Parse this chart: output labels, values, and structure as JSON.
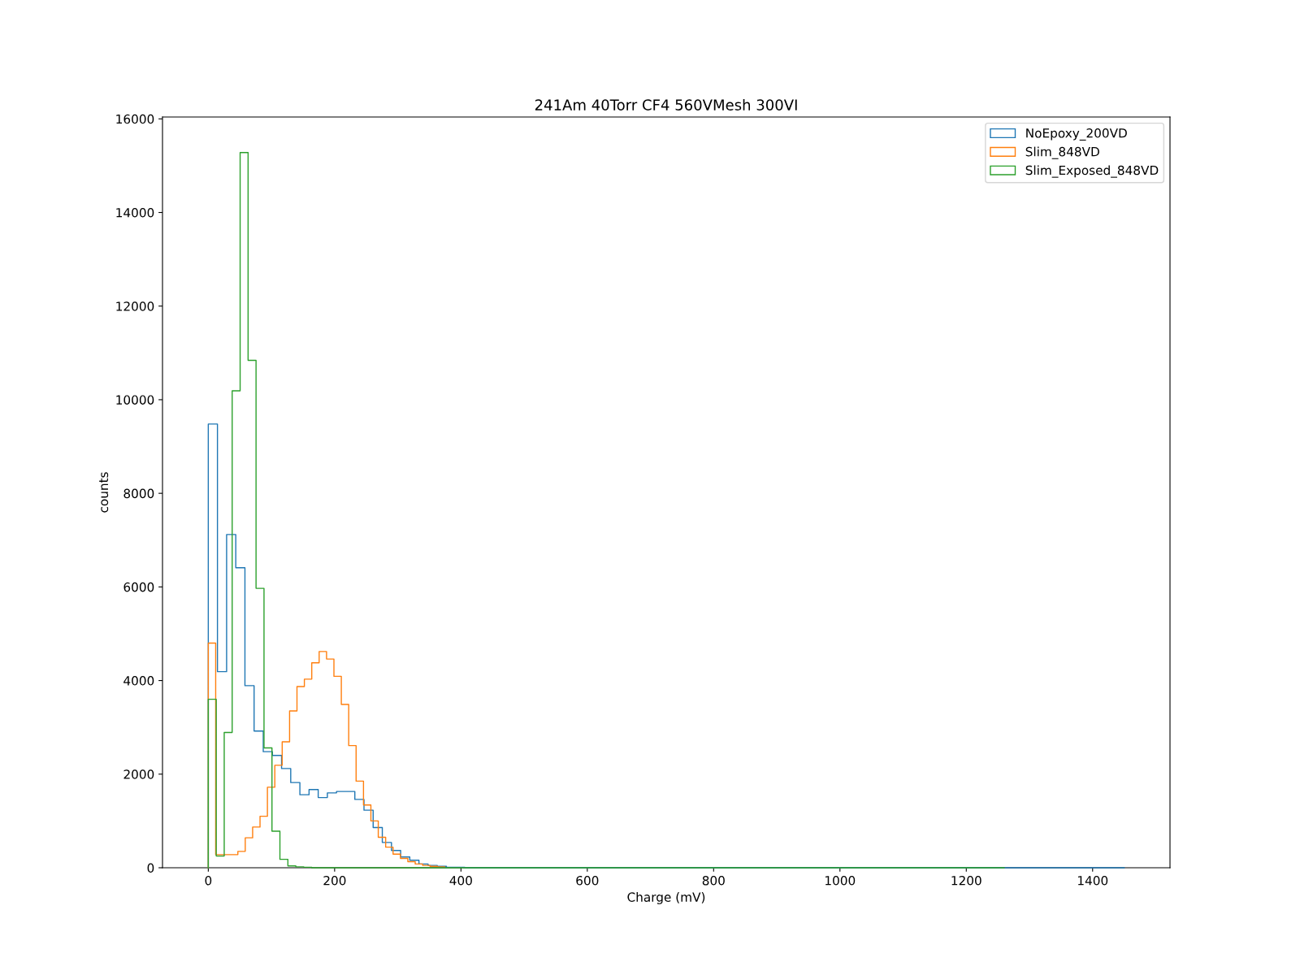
{
  "chart_data": {
    "type": "step",
    "title": "241Am 40Torr CF4 560VMesh 300VI",
    "xlabel": "Charge (mV)",
    "ylabel": "counts",
    "series": [
      {
        "name": "NoEpoxy_200VD",
        "color": "#1f77b4",
        "x": [
          0,
          0,
          14.5,
          29,
          43.5,
          58,
          72.5,
          87,
          101.5,
          116,
          130.5,
          145,
          159.5,
          174,
          188.5,
          203,
          217.5,
          232,
          246.5,
          261,
          275.5,
          290,
          304.5,
          319,
          333.5,
          348,
          362.5,
          377,
          391.5,
          406,
          1450
        ],
        "values": [
          0,
          9480,
          4190,
          7120,
          6410,
          3890,
          2920,
          2480,
          2400,
          2120,
          1820,
          1560,
          1670,
          1500,
          1600,
          1630,
          1630,
          1460,
          1230,
          860,
          540,
          370,
          230,
          160,
          80,
          50,
          30,
          10,
          10,
          0,
          0
        ]
      },
      {
        "name": "Slim_848VD",
        "color": "#ff7f0e",
        "x": [
          0,
          0,
          11.7,
          23.4,
          35.1,
          46.8,
          58.5,
          70.2,
          81.9,
          93.6,
          105.3,
          117,
          128.7,
          140.4,
          152.1,
          163.8,
          175.5,
          187.2,
          198.9,
          210.6,
          222.3,
          234,
          245.7,
          257.4,
          269.1,
          280.8,
          292.5,
          304.2,
          315.9,
          327.6,
          339.3,
          351,
          362.7,
          374.4
        ],
        "values": [
          0,
          4800,
          280,
          280,
          280,
          350,
          640,
          870,
          1100,
          1720,
          2190,
          2690,
          3350,
          3870,
          4030,
          4380,
          4620,
          4460,
          4090,
          3490,
          2610,
          1850,
          1340,
          1000,
          650,
          440,
          290,
          200,
          130,
          80,
          50,
          30,
          20,
          10
        ]
      },
      {
        "name": "Slim_Exposed_848VD",
        "color": "#2ca02c",
        "x": [
          0,
          0,
          12.6,
          25.2,
          37.8,
          50.4,
          63,
          75.6,
          88.2,
          100.8,
          113.4,
          126,
          138.6,
          151.2,
          163.8,
          1260
        ],
        "values": [
          0,
          3600,
          250,
          2890,
          10190,
          15280,
          10840,
          5970,
          2560,
          780,
          180,
          40,
          20,
          10,
          0,
          0
        ]
      }
    ],
    "xlim": [
      -72.5,
      1522.5
    ],
    "xticks": [
      0,
      200,
      400,
      600,
      800,
      1000,
      1200,
      1400
    ],
    "ylim": [
      0,
      16040
    ],
    "yticks": [
      0,
      2000,
      4000,
      6000,
      8000,
      10000,
      12000,
      14000,
      16000
    ],
    "legend": "top right"
  }
}
